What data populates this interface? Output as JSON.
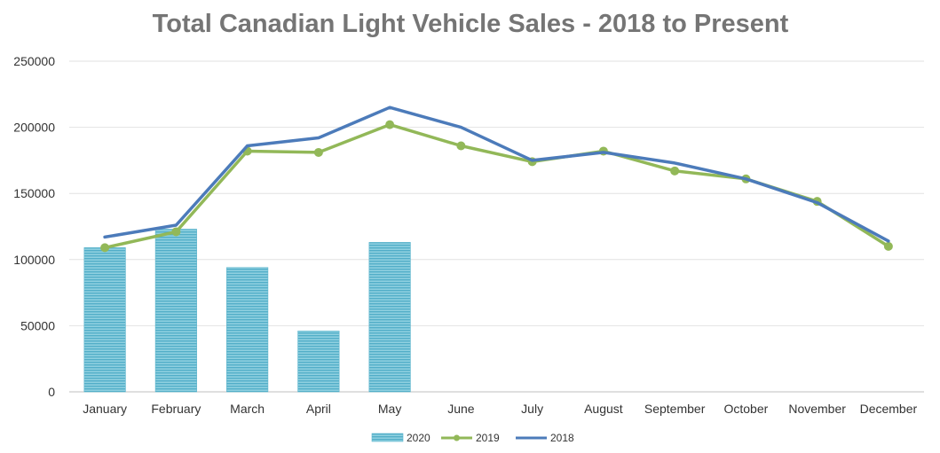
{
  "chart_data": {
    "type": "bar",
    "title": "Total Canadian Light Vehicle Sales - 2018 to Present",
    "xlabel": "",
    "ylabel": "",
    "ylim": [
      0,
      250000
    ],
    "yticks": [
      0,
      50000,
      100000,
      150000,
      200000,
      250000
    ],
    "grid": true,
    "legend_position": "bottom",
    "categories": [
      "January",
      "February",
      "March",
      "April",
      "May",
      "June",
      "July",
      "August",
      "September",
      "October",
      "November",
      "December"
    ],
    "series": [
      {
        "name": "2020",
        "type": "bar",
        "color": "#5bb4cc",
        "values": [
          109000,
          123000,
          94000,
          46000,
          113000,
          null,
          null,
          null,
          null,
          null,
          null,
          null
        ]
      },
      {
        "name": "2019",
        "type": "line",
        "marker": "circle",
        "color": "#92b858",
        "values": [
          109000,
          121000,
          182000,
          181000,
          202000,
          186000,
          174000,
          182000,
          167000,
          161000,
          144000,
          110000
        ]
      },
      {
        "name": "2018",
        "type": "line",
        "color": "#4c7bba",
        "values": [
          117000,
          126000,
          186000,
          192000,
          215000,
          200000,
          175000,
          181000,
          173000,
          161000,
          143000,
          114000
        ]
      }
    ]
  }
}
